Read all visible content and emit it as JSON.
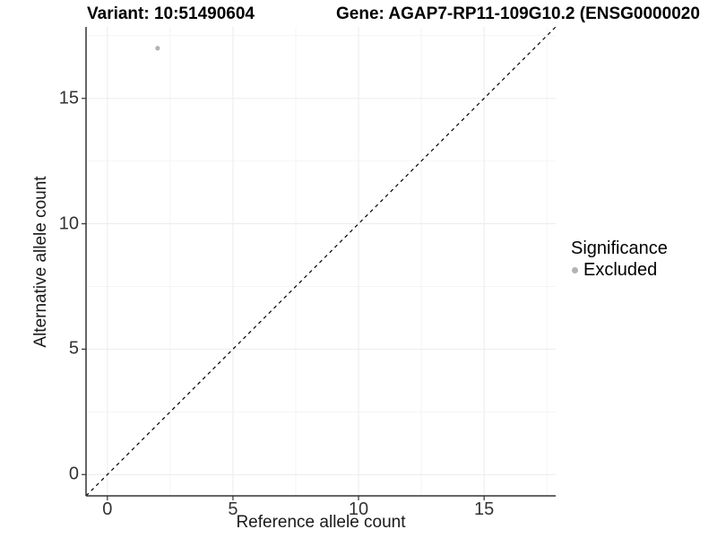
{
  "chart_data": {
    "type": "scatter",
    "title_left": "Variant: 10:51490604",
    "title_right": "Gene: AGAP7-RP11-109G10.2 (ENSG0000020",
    "xlabel": "Reference allele count",
    "ylabel": "Alternative allele count",
    "xlim": [
      -0.85,
      17.85
    ],
    "ylim": [
      -0.85,
      17.85
    ],
    "x_ticks": [
      0,
      5,
      10,
      15
    ],
    "y_ticks": [
      0,
      5,
      10,
      15
    ],
    "x_minor_ticks": [
      2.5,
      7.5,
      12.5,
      17.5
    ],
    "y_minor_ticks": [
      2.5,
      7.5,
      12.5,
      17.5
    ],
    "grid": "major-and-minor",
    "points": [
      {
        "x": 2,
        "y": 17,
        "series": "Excluded"
      }
    ],
    "reference_line": {
      "kind": "identity",
      "slope": 1,
      "intercept": 0,
      "style": "dashed",
      "color": "#000000"
    },
    "legend": {
      "title": "Significance",
      "position": "right",
      "entries": [
        {
          "label": "Excluded",
          "color": "#b3b3b3",
          "marker": "circle"
        }
      ]
    },
    "colors": {
      "point": "#b3b3b3",
      "grid_major": "#ebebeb",
      "grid_minor": "#f4f4f4",
      "axis_line": "#333333",
      "tick_mark": "#333333",
      "tick_label": "#333333",
      "background": "#ffffff"
    }
  }
}
